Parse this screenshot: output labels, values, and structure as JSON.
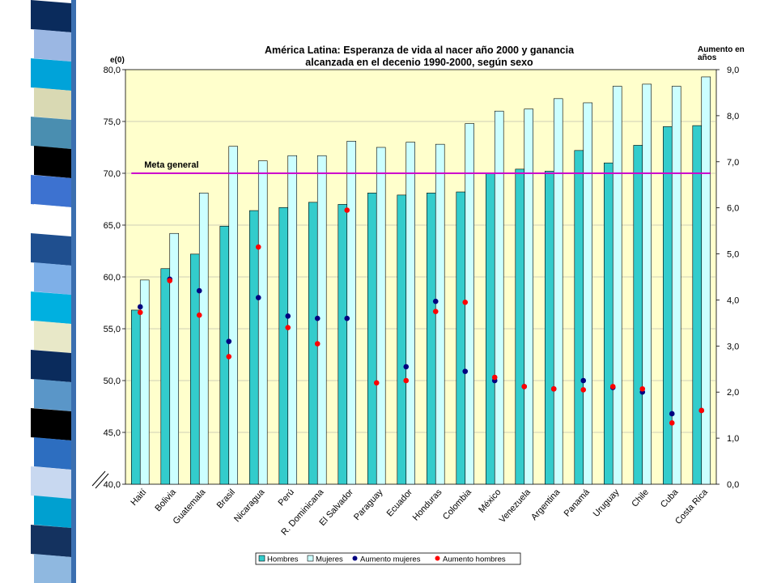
{
  "stripe_colors": [
    "#0a2b5c",
    "#9bb7e3",
    "#00a3d9",
    "#d9d9b3",
    "#4a8eb0",
    "#000000",
    "#3d72d0",
    "#ffffff",
    "#1f4f8f",
    "#7fb0e8",
    "#00b0e0",
    "#e8e8c8",
    "#0a2b5c",
    "#5a96c8",
    "#000000",
    "#2d6ec0",
    "#c8d8f0",
    "#00a0d0",
    "#14325f",
    "#8fb8e0"
  ],
  "colors": {
    "plot_bg": "#ffffcc",
    "hombres": "#33cccc",
    "mujeres": "#ccffff",
    "aumento_mujeres": "#000080",
    "aumento_hombres": "#ff0000",
    "meta_line": "#cc00cc",
    "category_highlight": "#c04060"
  },
  "chart_data": {
    "type": "bar",
    "title_line1": "América Latina: Esperanza de vida al nacer año 2000 y ganancia",
    "title_line2": "alcanzada en el decenio 1990-2000, según sexo",
    "ylabel_left": "e(0)",
    "ylabel_right_line1": "Aumento en",
    "ylabel_right_line2": "años",
    "ylim_left": [
      40,
      80
    ],
    "yticks_left": [
      "40,0",
      "45,0",
      "50,0",
      "55,0",
      "60,0",
      "65,0",
      "70,0",
      "75,0",
      "80,0"
    ],
    "ylim_right": [
      0,
      9
    ],
    "yticks_right": [
      "0,0",
      "1,0",
      "2,0",
      "3,0",
      "4,0",
      "5,0",
      "6,0",
      "7,0",
      "8,0",
      "9,0"
    ],
    "categories": [
      "Haití",
      "Bolivia",
      "Guatemala",
      "Brasil",
      "Nicaragua",
      "Perú",
      "R. Dominicana",
      "El Salvador",
      "Paraguay",
      "Ecuador",
      "Honduras",
      "Colombia",
      "México",
      "Venezuela",
      "Argentina",
      "Panamá",
      "Uruguay",
      "Chile",
      "Cuba",
      "Costa Rica"
    ],
    "highlighted_categories": [
      "Haití",
      "Perú",
      "México",
      "Panamá"
    ],
    "series": [
      {
        "name": "Hombres",
        "kind": "bar",
        "axis": "left",
        "values": [
          56.8,
          60.8,
          62.2,
          64.9,
          66.4,
          66.7,
          67.2,
          67.0,
          68.1,
          67.9,
          68.1,
          68.2,
          70.0,
          70.4,
          70.2,
          72.2,
          71.0,
          72.7,
          74.5,
          74.6
        ]
      },
      {
        "name": "Mujeres",
        "kind": "bar",
        "axis": "left",
        "values": [
          59.7,
          64.2,
          68.1,
          72.6,
          71.2,
          71.7,
          71.7,
          73.1,
          72.5,
          73.0,
          72.8,
          74.8,
          76.0,
          76.2,
          77.2,
          76.8,
          78.4,
          78.6,
          78.4,
          79.3
        ]
      },
      {
        "name": "Aumento mujeres",
        "kind": "point",
        "axis": "right",
        "values": [
          3.85,
          4.45,
          4.2,
          3.1,
          4.05,
          3.65,
          3.6,
          3.6,
          null,
          2.55,
          3.97,
          2.45,
          2.25,
          2.12,
          2.07,
          2.25,
          2.1,
          2.0,
          1.53,
          1.6
        ]
      },
      {
        "name": "Aumento hombres",
        "kind": "point",
        "axis": "right",
        "values": [
          3.73,
          4.42,
          3.67,
          2.77,
          5.15,
          3.4,
          3.05,
          5.95,
          2.2,
          2.25,
          3.75,
          3.95,
          2.32,
          2.12,
          2.07,
          2.05,
          2.12,
          2.07,
          1.33,
          1.6
        ]
      }
    ],
    "reference_line": {
      "label": "Meta general",
      "value": 70,
      "axis": "left"
    },
    "legend_position": "bottom",
    "grid": "horizontal"
  }
}
